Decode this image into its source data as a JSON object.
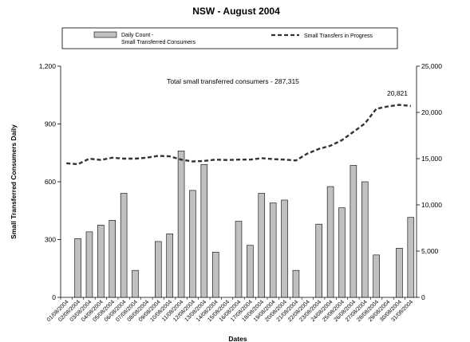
{
  "chart_data": {
    "type": "bar",
    "title": "NSW - August 2004",
    "xlabel": "Dates",
    "ylabel": "Small Transferred Consumers Daily",
    "y2label": "",
    "ylim": [
      0,
      1200
    ],
    "y2lim": [
      0,
      25000
    ],
    "yticks": [
      "0",
      "300",
      "600",
      "900",
      "1,200"
    ],
    "y2ticks": [
      "0",
      "5,000",
      "10,000",
      "15,000",
      "20,000",
      "25,000"
    ],
    "annotation": "Total small transferred consumers - 287,315",
    "peak_label": "20,821",
    "grid": false,
    "legend_placement": "top",
    "legend": {
      "bar_label_line1": "Daily Count -",
      "bar_label_line2": "Small Transferred Consumers",
      "line_label": "Small Transfers in Progress"
    },
    "categories": [
      "01/08/2004",
      "02/08/2004",
      "03/08/2004",
      "04/08/2004",
      "05/08/2004",
      "06/08/2004",
      "07/08/2004",
      "08/08/2004",
      "09/08/2004",
      "10/08/2004",
      "11/08/2004",
      "12/08/2004",
      "13/08/2004",
      "14/08/2004",
      "15/08/2004",
      "16/08/2004",
      "17/08/2004",
      "18/08/2004",
      "19/08/2004",
      "20/08/2004",
      "21/08/2004",
      "22/08/2004",
      "23/08/2004",
      "24/08/2004",
      "25/08/2004",
      "26/08/2004",
      "27/08/2004",
      "28/08/2004",
      "29/08/2004",
      "30/08/2004",
      "31/08/2004"
    ],
    "series": [
      {
        "name": "Daily Count - Small Transferred Consumers",
        "kind": "bar",
        "axis": "left",
        "values": [
          0,
          305,
          340,
          375,
          400,
          540,
          140,
          0,
          290,
          330,
          760,
          555,
          690,
          235,
          0,
          395,
          270,
          540,
          490,
          505,
          140,
          0,
          380,
          575,
          465,
          685,
          600,
          220,
          0,
          255,
          415
        ]
      },
      {
        "name": "Small Transfers in Progress",
        "kind": "line",
        "axis": "right",
        "values": [
          14500,
          14400,
          15000,
          14850,
          15100,
          15000,
          15000,
          15100,
          15300,
          15250,
          14900,
          14700,
          14750,
          14900,
          14850,
          14900,
          14900,
          15050,
          14950,
          14900,
          14800,
          15550,
          16050,
          16400,
          17000,
          17900,
          18800,
          20400,
          20650,
          20821,
          20700
        ]
      }
    ],
    "colors": {
      "bar_fill": "#c0c0c0",
      "bar_stroke": "#000000",
      "line": "#333333"
    }
  }
}
